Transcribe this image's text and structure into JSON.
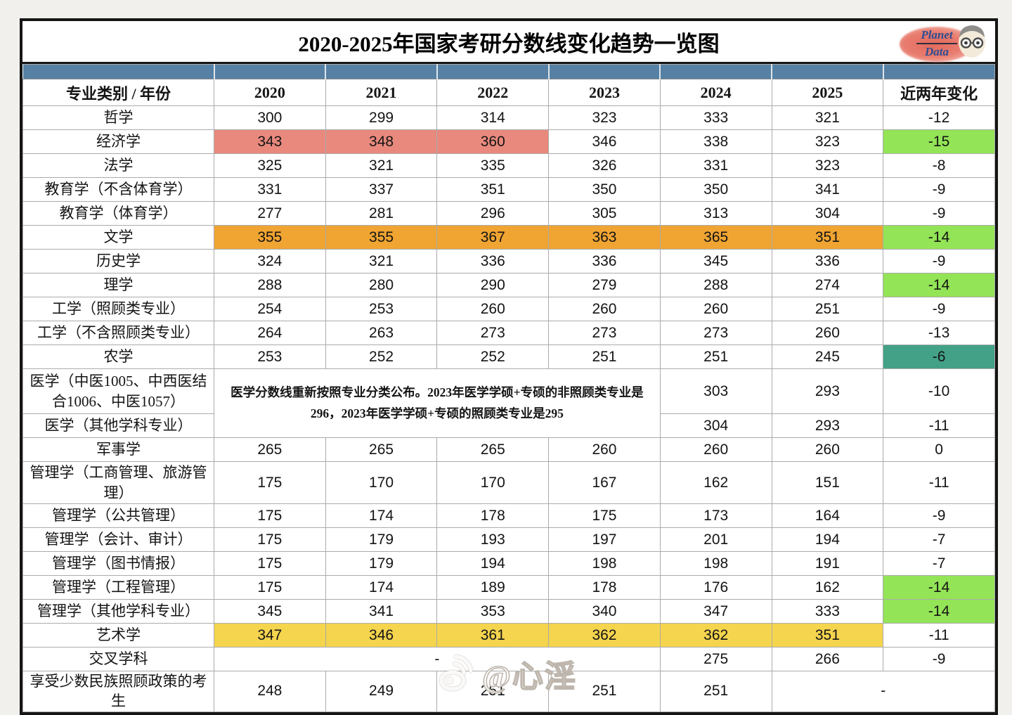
{
  "title": "2020-2025年国家考研分数线变化趋势一览图",
  "logo": {
    "line1": "Planet",
    "line2": "Data"
  },
  "watermark": {
    "text": "@心淫"
  },
  "colors": {
    "band": "#5681a5",
    "pink": "#e9897d",
    "orange": "#f0a432",
    "yellow": "#f5d44e",
    "green": "#93e456",
    "teal": "#42a186"
  },
  "table": {
    "header": {
      "category": "专业类别 / 年份",
      "years": [
        "2020",
        "2021",
        "2022",
        "2023",
        "2024",
        "2025"
      ],
      "change": "近两年变化"
    },
    "medical_note": "医学分数线重新按照专业分类公布。2023年医学学硕+专硕的非照顾类专业是296，2023年医学学硕+专硕的照顾类专业是295",
    "rows": [
      {
        "label": "哲学",
        "cells": [
          {
            "t": "300"
          },
          {
            "t": "299"
          },
          {
            "t": "314"
          },
          {
            "t": "323"
          },
          {
            "t": "333"
          },
          {
            "t": "321"
          },
          {
            "t": "-12"
          }
        ]
      },
      {
        "label": "经济学",
        "cells": [
          {
            "t": "343",
            "bg": "pink"
          },
          {
            "t": "348",
            "bg": "pink"
          },
          {
            "t": "360",
            "bg": "pink"
          },
          {
            "t": "346"
          },
          {
            "t": "338"
          },
          {
            "t": "323"
          },
          {
            "t": "-15",
            "bg": "green"
          }
        ]
      },
      {
        "label": "法学",
        "cells": [
          {
            "t": "325"
          },
          {
            "t": "321"
          },
          {
            "t": "335"
          },
          {
            "t": "326"
          },
          {
            "t": "331"
          },
          {
            "t": "323"
          },
          {
            "t": "-8"
          }
        ]
      },
      {
        "label": "教育学（不含体育学）",
        "cells": [
          {
            "t": "331"
          },
          {
            "t": "337"
          },
          {
            "t": "351"
          },
          {
            "t": "350"
          },
          {
            "t": "350"
          },
          {
            "t": "341"
          },
          {
            "t": "-9"
          }
        ]
      },
      {
        "label": "教育学（体育学）",
        "cells": [
          {
            "t": "277"
          },
          {
            "t": "281"
          },
          {
            "t": "296"
          },
          {
            "t": "305"
          },
          {
            "t": "313"
          },
          {
            "t": "304"
          },
          {
            "t": "-9"
          }
        ]
      },
      {
        "label": "文学",
        "cells": [
          {
            "t": "355",
            "bg": "orange"
          },
          {
            "t": "355",
            "bg": "orange"
          },
          {
            "t": "367",
            "bg": "orange"
          },
          {
            "t": "363",
            "bg": "orange"
          },
          {
            "t": "365",
            "bg": "orange"
          },
          {
            "t": "351",
            "bg": "orange"
          },
          {
            "t": "-14",
            "bg": "green"
          }
        ]
      },
      {
        "label": "历史学",
        "cells": [
          {
            "t": "324"
          },
          {
            "t": "321"
          },
          {
            "t": "336"
          },
          {
            "t": "336"
          },
          {
            "t": "345"
          },
          {
            "t": "336"
          },
          {
            "t": "-9"
          }
        ]
      },
      {
        "label": "理学",
        "cells": [
          {
            "t": "288"
          },
          {
            "t": "280"
          },
          {
            "t": "290"
          },
          {
            "t": "279"
          },
          {
            "t": "288"
          },
          {
            "t": "274"
          },
          {
            "t": "-14",
            "bg": "green"
          }
        ]
      },
      {
        "label": "工学（照顾类专业）",
        "cells": [
          {
            "t": "254"
          },
          {
            "t": "253"
          },
          {
            "t": "260"
          },
          {
            "t": "260"
          },
          {
            "t": "260"
          },
          {
            "t": "251"
          },
          {
            "t": "-9"
          }
        ]
      },
      {
        "label": "工学（不含照顾类专业）",
        "cells": [
          {
            "t": "264"
          },
          {
            "t": "263"
          },
          {
            "t": "273"
          },
          {
            "t": "273"
          },
          {
            "t": "273"
          },
          {
            "t": "260"
          },
          {
            "t": "-13"
          }
        ]
      },
      {
        "label": "农学",
        "cells": [
          {
            "t": "253"
          },
          {
            "t": "252"
          },
          {
            "t": "252"
          },
          {
            "t": "251"
          },
          {
            "t": "251"
          },
          {
            "t": "245"
          },
          {
            "t": "-6",
            "bg": "teal"
          }
        ]
      },
      {
        "label": "医学（中医1005、中西医结合1006、中医1057）",
        "rowClass": "med-first",
        "cells": [
          {
            "t": "@note",
            "cs": 4,
            "rs": 2,
            "cls": "note-cell"
          },
          {
            "t": "303"
          },
          {
            "t": "293"
          },
          {
            "t": "-10"
          }
        ]
      },
      {
        "label": "医学（其他学科专业）",
        "cells": [
          {
            "t": "304"
          },
          {
            "t": "293"
          },
          {
            "t": "-11"
          }
        ]
      },
      {
        "label": "军事学",
        "cells": [
          {
            "t": "265"
          },
          {
            "t": "265"
          },
          {
            "t": "265"
          },
          {
            "t": "260"
          },
          {
            "t": "260"
          },
          {
            "t": "260"
          },
          {
            "t": "0"
          }
        ]
      },
      {
        "label": "管理学（工商管理、旅游管理）",
        "rowClass": "tall",
        "cells": [
          {
            "t": "175"
          },
          {
            "t": "170"
          },
          {
            "t": "170"
          },
          {
            "t": "167"
          },
          {
            "t": "162"
          },
          {
            "t": "151"
          },
          {
            "t": "-11"
          }
        ]
      },
      {
        "label": "管理学（公共管理）",
        "cells": [
          {
            "t": "175"
          },
          {
            "t": "174"
          },
          {
            "t": "178"
          },
          {
            "t": "175"
          },
          {
            "t": "173"
          },
          {
            "t": "164"
          },
          {
            "t": "-9"
          }
        ]
      },
      {
        "label": "管理学（会计、审计）",
        "cells": [
          {
            "t": "175"
          },
          {
            "t": "179"
          },
          {
            "t": "193"
          },
          {
            "t": "197"
          },
          {
            "t": "201"
          },
          {
            "t": "194"
          },
          {
            "t": "-7"
          }
        ]
      },
      {
        "label": "管理学（图书情报）",
        "cells": [
          {
            "t": "175"
          },
          {
            "t": "179"
          },
          {
            "t": "194"
          },
          {
            "t": "198"
          },
          {
            "t": "198"
          },
          {
            "t": "191"
          },
          {
            "t": "-7"
          }
        ]
      },
      {
        "label": "管理学（工程管理）",
        "cells": [
          {
            "t": "175"
          },
          {
            "t": "174"
          },
          {
            "t": "189"
          },
          {
            "t": "178"
          },
          {
            "t": "176"
          },
          {
            "t": "162"
          },
          {
            "t": "-14",
            "bg": "green"
          }
        ]
      },
      {
        "label": "管理学（其他学科专业）",
        "cells": [
          {
            "t": "345"
          },
          {
            "t": "341"
          },
          {
            "t": "353"
          },
          {
            "t": "340"
          },
          {
            "t": "347"
          },
          {
            "t": "333"
          },
          {
            "t": "-14",
            "bg": "green"
          }
        ]
      },
      {
        "label": "艺术学",
        "cells": [
          {
            "t": "347",
            "bg": "yellow"
          },
          {
            "t": "346",
            "bg": "yellow"
          },
          {
            "t": "361",
            "bg": "yellow"
          },
          {
            "t": "362",
            "bg": "yellow"
          },
          {
            "t": "362",
            "bg": "yellow"
          },
          {
            "t": "351",
            "bg": "yellow"
          },
          {
            "t": "-11"
          }
        ]
      },
      {
        "label": "交叉学科",
        "cells": [
          {
            "t": "-",
            "cs": 4
          },
          {
            "t": "275"
          },
          {
            "t": "266"
          },
          {
            "t": "-9"
          }
        ]
      },
      {
        "label": "享受少数民族照顾政策的考生",
        "rowClass": "last",
        "cells": [
          {
            "t": "248"
          },
          {
            "t": "249"
          },
          {
            "t": "251"
          },
          {
            "t": "251"
          },
          {
            "t": "251"
          },
          {
            "t": "-",
            "cs": 2
          }
        ]
      }
    ]
  },
  "chart_data": {
    "type": "table",
    "title": "2020-2025年国家考研分数线变化趋势一览图",
    "columns": [
      "专业类别 / 年份",
      "2020",
      "2021",
      "2022",
      "2023",
      "2024",
      "2025",
      "近两年变化"
    ],
    "rows": [
      [
        "哲学",
        300,
        299,
        314,
        323,
        333,
        321,
        -12
      ],
      [
        "经济学",
        343,
        348,
        360,
        346,
        338,
        323,
        -15
      ],
      [
        "法学",
        325,
        321,
        335,
        326,
        331,
        323,
        -8
      ],
      [
        "教育学（不含体育学）",
        331,
        337,
        351,
        350,
        350,
        341,
        -9
      ],
      [
        "教育学（体育学）",
        277,
        281,
        296,
        305,
        313,
        304,
        -9
      ],
      [
        "文学",
        355,
        355,
        367,
        363,
        365,
        351,
        -14
      ],
      [
        "历史学",
        324,
        321,
        336,
        336,
        345,
        336,
        -9
      ],
      [
        "理学",
        288,
        280,
        290,
        279,
        288,
        274,
        -14
      ],
      [
        "工学（照顾类专业）",
        254,
        253,
        260,
        260,
        260,
        251,
        -9
      ],
      [
        "工学（不含照顾类专业）",
        264,
        263,
        273,
        273,
        273,
        260,
        -13
      ],
      [
        "农学",
        253,
        252,
        252,
        251,
        251,
        245,
        -6
      ],
      [
        "医学（中医1005、中西医结合1006、中医1057）",
        null,
        null,
        null,
        null,
        303,
        293,
        -10
      ],
      [
        "医学（其他学科专业）",
        null,
        null,
        null,
        null,
        304,
        293,
        -11
      ],
      [
        "军事学",
        265,
        265,
        265,
        260,
        260,
        260,
        0
      ],
      [
        "管理学（工商管理、旅游管理）",
        175,
        170,
        170,
        167,
        162,
        151,
        -11
      ],
      [
        "管理学（公共管理）",
        175,
        174,
        178,
        175,
        173,
        164,
        -9
      ],
      [
        "管理学（会计、审计）",
        175,
        179,
        193,
        197,
        201,
        194,
        -7
      ],
      [
        "管理学（图书情报）",
        175,
        179,
        194,
        198,
        198,
        191,
        -7
      ],
      [
        "管理学（工程管理）",
        175,
        174,
        189,
        178,
        176,
        162,
        -14
      ],
      [
        "管理学（其他学科专业）",
        345,
        341,
        353,
        340,
        347,
        333,
        -14
      ],
      [
        "艺术学",
        347,
        346,
        361,
        362,
        362,
        351,
        -11
      ],
      [
        "交叉学科",
        "-",
        "-",
        "-",
        "-",
        275,
        266,
        -9
      ],
      [
        "享受少数民族照顾政策的考生",
        248,
        249,
        251,
        251,
        251,
        "-",
        "-"
      ]
    ],
    "notes": {
      "medical_2020_2023_merged": "医学分数线重新按照专业分类公布。2023年医学学硕+专硕的非照顾类专业是296，2023年医学学硕+专硕的照顾类专业是295"
    }
  }
}
